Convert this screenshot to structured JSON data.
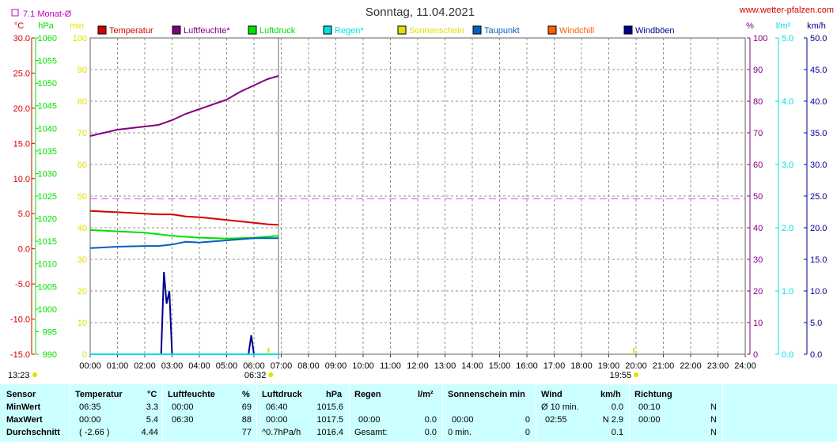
{
  "header": {
    "title": "Sonntag, 11.04.2021",
    "site": "www.wetter-pfalzen.com",
    "avg_label": "7.1 Monat-Ø"
  },
  "colors": {
    "temperatur": "#d40000",
    "luftfeuchte": "#800080",
    "luftdruck": "#00e000",
    "regen": "#00e0e0",
    "sonnenschein": "#e0e000",
    "taupunkt": "#0060c0",
    "windchill": "#ff6000",
    "windboeen": "#000090",
    "table_bg": "#ccffff"
  },
  "times": {
    "sunrise": "06:32",
    "sunset": "19:55",
    "left_note": "13:23"
  },
  "chart_data": {
    "type": "line",
    "x_unit": "hours",
    "xlim": [
      0,
      24
    ],
    "x_ticks": [
      "00:00",
      "01:00",
      "02:00",
      "03:00",
      "04:00",
      "05:00",
      "06:00",
      "07:00",
      "08:00",
      "09:00",
      "10:00",
      "11:00",
      "12:00",
      "13:00",
      "14:00",
      "15:00",
      "16:00",
      "17:00",
      "18:00",
      "19:00",
      "20:00",
      "21:00",
      "22:00",
      "23:00",
      "24:00"
    ],
    "axes": [
      {
        "unit": "°C",
        "range": [
          -15,
          30
        ],
        "ticks": [
          "30.0",
          "25.0",
          "20.0",
          "15.0",
          "10.0",
          "5.0",
          "0.0",
          "-5.0",
          "-10.0",
          "-15.0"
        ],
        "color": "#d40000"
      },
      {
        "unit": "hPa",
        "range": [
          990,
          1060
        ],
        "ticks": [
          "1060",
          "1055",
          "1050",
          "1045",
          "1040",
          "1035",
          "1030",
          "1025",
          "1020",
          "1015",
          "1010",
          "1005",
          "1000",
          "995",
          "990"
        ],
        "color": "#00e000"
      },
      {
        "unit": "min",
        "range": [
          0,
          100
        ],
        "ticks": [
          "100",
          "90",
          "80",
          "70",
          "60",
          "50",
          "40",
          "30",
          "20",
          "10",
          "0"
        ],
        "color": "#e0e000"
      },
      {
        "unit": "%",
        "range": [
          0,
          100
        ],
        "ticks": [
          "100",
          "90",
          "80",
          "70",
          "60",
          "50",
          "40",
          "30",
          "20",
          "10",
          "0"
        ],
        "color": "#800080"
      },
      {
        "unit": "l/m²",
        "range": [
          0,
          5
        ],
        "ticks": [
          "5.0",
          "4.0",
          "3.0",
          "2.0",
          "1.0",
          "0.0"
        ],
        "color": "#00e0e0"
      },
      {
        "unit": "km/h",
        "range": [
          0,
          50
        ],
        "ticks": [
          "50.0",
          "45.0",
          "40.0",
          "35.0",
          "30.0",
          "25.0",
          "20.0",
          "15.0",
          "10.0",
          "5.0",
          "0.0"
        ],
        "color": "#000090"
      }
    ],
    "legend": [
      "Temperatur",
      "Luftfeuchte*",
      "Luftdruck",
      "Regen*",
      "Sonnenschein",
      "Taupunkt",
      "Windchill",
      "Windböen"
    ],
    "monthly_avg_temp": 7.1,
    "series": [
      {
        "name": "Temperatur",
        "unit": "°C",
        "x": [
          0,
          0.5,
          1,
          1.5,
          2,
          2.5,
          3,
          3.5,
          4,
          4.5,
          5,
          5.5,
          6,
          6.5,
          6.9
        ],
        "values": [
          5.4,
          5.3,
          5.2,
          5.1,
          5.0,
          4.9,
          4.9,
          4.6,
          4.5,
          4.3,
          4.1,
          3.9,
          3.7,
          3.5,
          3.4
        ]
      },
      {
        "name": "Luftfeuchte*",
        "unit": "%",
        "x": [
          0,
          0.5,
          1,
          1.5,
          2,
          2.5,
          3,
          3.5,
          4,
          4.5,
          5,
          5.5,
          6,
          6.5,
          6.9
        ],
        "values": [
          69,
          70,
          71,
          71.5,
          72,
          72.5,
          74,
          76,
          77.5,
          79,
          80.5,
          83,
          85,
          87,
          88
        ]
      },
      {
        "name": "Luftdruck",
        "unit": "hPa",
        "x": [
          0,
          1,
          2,
          3,
          4,
          5,
          6,
          6.9
        ],
        "values": [
          1017.5,
          1017.2,
          1016.9,
          1016.2,
          1015.8,
          1015.6,
          1015.8,
          1016.2
        ]
      },
      {
        "name": "Taupunkt",
        "unit": "°C",
        "x": [
          0,
          1,
          2,
          2.5,
          3,
          3.5,
          4,
          5,
          6,
          6.9
        ],
        "values": [
          0.1,
          0.3,
          0.4,
          0.4,
          0.6,
          1.0,
          0.9,
          1.2,
          1.5,
          1.5
        ]
      },
      {
        "name": "Windböen",
        "unit": "km/h",
        "x": [
          0,
          2.6,
          2.7,
          2.8,
          2.9,
          3.0,
          3.1,
          3.2,
          5.7,
          5.8,
          5.9,
          6.0,
          6.1
        ],
        "values": [
          0,
          0,
          13,
          8,
          10,
          0,
          0,
          0,
          0,
          0,
          3,
          0,
          0
        ]
      },
      {
        "name": "Regen*",
        "unit": "l/m²",
        "x": [
          0,
          6.9
        ],
        "values": [
          0,
          0
        ]
      }
    ]
  },
  "table": {
    "row_labels": [
      "Sensor",
      "MinWert",
      "MaxWert",
      "Durchschnitt"
    ],
    "temperatur": {
      "header": "Temperatur",
      "unit": "°C",
      "min_time": "06:35",
      "min_val": "3.3",
      "max_time": "00:00",
      "max_val": "5.4",
      "avg_extra": "( -2.66 )",
      "avg_val": "4.44"
    },
    "luftfeuchte": {
      "header": "Luftfeuchte",
      "unit": "%",
      "min_time": "00:00",
      "min_val": "69",
      "max_time": "06:30",
      "max_val": "88",
      "avg_val": "77"
    },
    "luftdruck": {
      "header": "Luftdruck",
      "unit": "hPa",
      "min_time": "06:40",
      "min_val": "1015.6",
      "max_time": "00:00",
      "max_val": "1017.5",
      "avg_extra": "^0.7hPa/h",
      "avg_val": "1016.4"
    },
    "regen": {
      "header": "Regen",
      "unit": "l/m²",
      "max_time": "00:00",
      "max_val": "0.0",
      "avg_label": "Gesamt:",
      "avg_val": "0.0"
    },
    "sonne": {
      "header": "Sonnenschein min",
      "max_time": "00:00",
      "max_val": "0",
      "avg_label": "0 min.",
      "avg_val": "0"
    },
    "wind": {
      "header": "Wind",
      "unit": "km/h",
      "min_label": "Ø 10 min.",
      "min_val": "0.0",
      "max_time": "02:55",
      "max_val": "N 2.9",
      "avg_val": "0.1"
    },
    "richtung": {
      "header": "Richtung",
      "min_time": "00:10",
      "min_val": "N",
      "max_time": "00:00",
      "max_val": "N",
      "avg_val": "N"
    }
  }
}
